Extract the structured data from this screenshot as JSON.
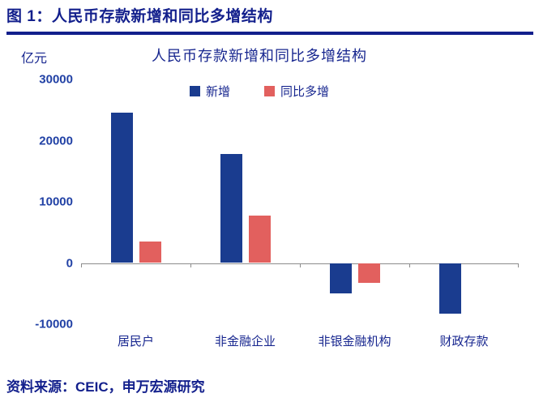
{
  "page": {
    "figure_label": "图 1：",
    "figure_title": "人民币存款新增和同比多增结构",
    "source_text": "资料来源：CEIC，申万宏源研究"
  },
  "colors": {
    "navy_text": "#121f8c",
    "tick_label_blue": "#2141a5",
    "bar_blue": "#1a3c8f",
    "bar_red": "#e2605e",
    "axis_line_gray": "#8c8c8c"
  },
  "chart_data": {
    "type": "bar",
    "title": "人民币存款新增和同比多增结构",
    "unit_label": "亿元",
    "xlabel": "",
    "ylabel": "亿元",
    "categories": [
      "居民户",
      "非金融企业",
      "非银金融机构",
      "财政存款"
    ],
    "series": [
      {
        "name": "新增",
        "color": "#1a3c8f",
        "values": [
          24600,
          17800,
          -5000,
          -8300
        ]
      },
      {
        "name": "同比多增",
        "color": "#e2605e",
        "values": [
          3500,
          7800,
          -3300,
          null
        ]
      }
    ],
    "ylim": [
      -10000,
      30000
    ],
    "yticks": [
      30000,
      20000,
      10000,
      0,
      -10000
    ],
    "legend_position": "top-center",
    "grid": false
  }
}
